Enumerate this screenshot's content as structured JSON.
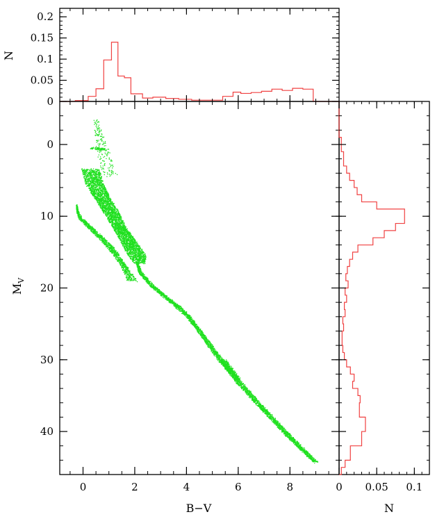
{
  "chart_data": [
    {
      "id": "top_histogram",
      "type": "histogram",
      "title": "",
      "xlabel": "",
      "ylabel": "N",
      "xlim": [
        -0.9,
        9.9
      ],
      "ylim": [
        0,
        0.22
      ],
      "xticks": [
        0,
        2,
        4,
        6,
        8
      ],
      "yticks": [
        0,
        0.05,
        0.1,
        0.15,
        0.2
      ],
      "ytick_labels": [
        "0",
        "0.05",
        "0.1",
        "0.15",
        "0.2"
      ],
      "color": "#f04040",
      "bins": {
        "edges": [
          -0.3,
          0.2,
          0.5,
          0.8,
          1.1,
          1.35,
          1.6,
          1.85,
          2.3,
          2.7,
          3.2,
          3.7,
          4.2,
          5.4,
          5.8,
          6.1,
          6.5,
          6.9,
          7.3,
          7.7,
          8.1,
          8.5,
          8.9
        ],
        "values": [
          0.002,
          0.012,
          0.03,
          0.098,
          0.14,
          0.06,
          0.056,
          0.018,
          0.008,
          0.01,
          0.007,
          0.005,
          0.003,
          0.012,
          0.022,
          0.019,
          0.021,
          0.024,
          0.029,
          0.026,
          0.031,
          0.029
        ]
      }
    },
    {
      "id": "main_cmd",
      "type": "scatter",
      "title": "",
      "xlabel": "B−V",
      "ylabel": "M",
      "ylabel_subscript": "V",
      "xlim": [
        -0.9,
        9.9
      ],
      "ylim": [
        46,
        -6
      ],
      "y_inverted": true,
      "xticks": [
        0,
        2,
        4,
        6,
        8
      ],
      "yticks": [
        0,
        10,
        20,
        30,
        40
      ],
      "color": "#20e020",
      "series": [
        {
          "ridge": [
            [
              0.3,
              3.5
            ],
            [
              0.45,
              5.5
            ],
            [
              0.75,
              7.5
            ],
            [
              1.1,
              9.5
            ],
            [
              1.4,
              11.5
            ],
            [
              1.75,
              13.5
            ],
            [
              2.1,
              15.5
            ],
            [
              2.2,
              16.5
            ]
          ],
          "width": [
            0.35,
            0.35,
            0.3,
            0.3,
            0.25,
            0.3,
            0.35,
            0.2
          ],
          "density": 4
        },
        {
          "ridge": [
            [
              0.5,
              -3.5
            ],
            [
              0.7,
              0
            ],
            [
              0.9,
              2.5
            ],
            [
              1.1,
              4.5
            ]
          ],
          "width": [
            0.1,
            0.2,
            0.3,
            0.25
          ],
          "density": 0.35
        },
        {
          "ridge": [
            [
              0.3,
              0.5
            ],
            [
              0.6,
              0.6
            ],
            [
              0.9,
              0.7
            ]
          ],
          "width": [
            0.05,
            0.05,
            0.05
          ],
          "density": 0.6
        },
        {
          "ridge": [
            [
              -0.25,
              8.5
            ],
            [
              -0.2,
              9.5
            ],
            [
              -0.1,
              10.3
            ],
            [
              0.25,
              11.5
            ],
            [
              0.7,
              13.0
            ],
            [
              1.1,
              14.5
            ],
            [
              1.5,
              16.5
            ],
            [
              1.8,
              18.3
            ],
            [
              1.9,
              19.0
            ]
          ],
          "width": [
            0.02,
            0.04,
            0.06,
            0.08,
            0.1,
            0.12,
            0.1,
            0.15,
            0.2
          ],
          "density": 1.5
        },
        {
          "ridge": [
            [
              2.1,
              16.5
            ],
            [
              2.2,
              17.8
            ],
            [
              2.7,
              19.8
            ],
            [
              3.2,
              21.3
            ],
            [
              3.7,
              22.7
            ],
            [
              4.1,
              24.1
            ],
            [
              4.6,
              26.5
            ],
            [
              5.2,
              29.5
            ],
            [
              6.0,
              33.0
            ],
            [
              7.0,
              37.0
            ],
            [
              8.0,
              40.8
            ],
            [
              9.0,
              44.3
            ]
          ],
          "width": [
            0.05,
            0.06,
            0.07,
            0.08,
            0.1,
            0.08,
            0.08,
            0.1,
            0.12,
            0.1,
            0.1,
            0.08
          ],
          "density": 1.5
        },
        {
          "ridge": [
            [
              5.4,
              30.0
            ],
            [
              6.0,
              32.8
            ]
          ],
          "width": [
            0.12,
            0.12
          ],
          "density": 1.2
        }
      ]
    },
    {
      "id": "right_histogram",
      "type": "histogram",
      "orientation": "horizontal",
      "title": "",
      "xlabel": "N",
      "ylabel": "",
      "xlim": [
        0,
        0.12
      ],
      "ylim": [
        46,
        -6
      ],
      "xticks": [
        0,
        0.05,
        0.1
      ],
      "xtick_labels": [
        "0",
        "0.05",
        "0.1"
      ],
      "color": "#f04040",
      "bins": {
        "edges": [
          -6,
          -1,
          1,
          3,
          4,
          5,
          6,
          7,
          8,
          9,
          11,
          12,
          13,
          14,
          15,
          16,
          17,
          18,
          19,
          20,
          21,
          22,
          23,
          24,
          25,
          26,
          28,
          29,
          30,
          31,
          32,
          33,
          34,
          35,
          36,
          38,
          40,
          42,
          44,
          45,
          46
        ],
        "values": [
          0.0,
          0.003,
          0.006,
          0.01,
          0.014,
          0.02,
          0.024,
          0.03,
          0.05,
          0.087,
          0.075,
          0.06,
          0.045,
          0.025,
          0.018,
          0.014,
          0.011,
          0.009,
          0.012,
          0.008,
          0.01,
          0.007,
          0.008,
          0.005,
          0.006,
          0.004,
          0.005,
          0.007,
          0.01,
          0.015,
          0.02,
          0.018,
          0.025,
          0.028,
          0.027,
          0.035,
          0.03,
          0.015,
          0.008,
          0.003
        ]
      }
    }
  ]
}
